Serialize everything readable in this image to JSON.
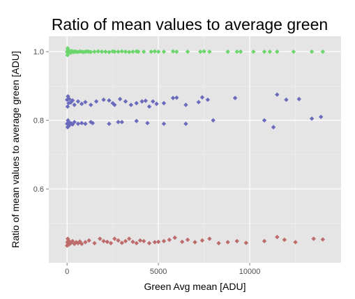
{
  "chart_data": {
    "type": "scatter",
    "title": "Ratio of mean values to average green",
    "xlabel": "Green Avg mean [ADU]",
    "ylabel": "Ratio of mean values to average green [ADU]",
    "xlim": [
      -1000,
      15000
    ],
    "ylim": [
      0.385,
      1.045
    ],
    "x_ticks": [
      0,
      5000,
      10000
    ],
    "x_tick_labels": [
      "0",
      "5000",
      "10000"
    ],
    "y_ticks": [
      0.6,
      0.8,
      1.0
    ],
    "y_tick_labels": [
      "0.6",
      "0.8",
      "1.0"
    ],
    "grid": true,
    "legend": "none",
    "series": [
      {
        "color": "#6bd66b",
        "points": [
          [
            0,
            1.0
          ],
          [
            20,
            0.99
          ],
          [
            30,
            1.01
          ],
          [
            50,
            1.005
          ],
          [
            60,
            0.995
          ],
          [
            80,
            1.0
          ],
          [
            100,
            0.998
          ],
          [
            120,
            1.003
          ],
          [
            150,
            1.0
          ],
          [
            200,
            0.997
          ],
          [
            250,
            1.002
          ],
          [
            300,
            1.0
          ],
          [
            350,
            0.999
          ],
          [
            400,
            1.001
          ],
          [
            450,
            1.0
          ],
          [
            500,
            1.0
          ],
          [
            600,
            0.999
          ],
          [
            700,
            1.001
          ],
          [
            800,
            1.0
          ],
          [
            900,
            0.999
          ],
          [
            1000,
            1.0
          ],
          [
            1100,
            1.001
          ],
          [
            1200,
            1.0
          ],
          [
            1300,
            0.999
          ],
          [
            1500,
            1.0
          ],
          [
            1700,
            1.001
          ],
          [
            1900,
            1.0
          ],
          [
            2100,
            1.0
          ],
          [
            2300,
            0.999
          ],
          [
            2500,
            1.001
          ],
          [
            2600,
            1.0
          ],
          [
            2800,
            1.0
          ],
          [
            3000,
            1.001
          ],
          [
            3200,
            1.0
          ],
          [
            3400,
            0.999
          ],
          [
            3600,
            1.0
          ],
          [
            3800,
            1.001
          ],
          [
            3900,
            1.0
          ],
          [
            4200,
            1.0
          ],
          [
            4600,
            1.0
          ],
          [
            4800,
            1.001
          ],
          [
            5000,
            1.0
          ],
          [
            5300,
            1.0
          ],
          [
            5800,
            1.001
          ],
          [
            6000,
            1.0
          ],
          [
            6600,
            1.0
          ],
          [
            7300,
            1.0
          ],
          [
            7500,
            1.001
          ],
          [
            7800,
            1.0
          ],
          [
            8800,
            1.0
          ],
          [
            9300,
            1.0
          ],
          [
            9500,
            1.0
          ],
          [
            10200,
            1.0
          ],
          [
            10800,
            1.0
          ],
          [
            11100,
            1.0
          ],
          [
            11500,
            1.0
          ],
          [
            12400,
            1.0
          ],
          [
            13400,
            1.0
          ],
          [
            14000,
            1.0
          ]
        ]
      },
      {
        "color": "#6b6bbd",
        "points": [
          [
            0,
            0.86
          ],
          [
            30,
            0.84
          ],
          [
            50,
            0.87
          ],
          [
            80,
            0.85
          ],
          [
            120,
            0.862
          ],
          [
            200,
            0.852
          ],
          [
            300,
            0.858
          ],
          [
            400,
            0.845
          ],
          [
            600,
            0.855
          ],
          [
            800,
            0.848
          ],
          [
            1000,
            0.853
          ],
          [
            1300,
            0.845
          ],
          [
            1600,
            0.855
          ],
          [
            2000,
            0.86
          ],
          [
            2300,
            0.858
          ],
          [
            2500,
            0.85
          ],
          [
            2600,
            0.845
          ],
          [
            2900,
            0.862
          ],
          [
            3200,
            0.855
          ],
          [
            3500,
            0.845
          ],
          [
            3800,
            0.85
          ],
          [
            4100,
            0.855
          ],
          [
            4300,
            0.857
          ],
          [
            4500,
            0.84
          ],
          [
            4700,
            0.855
          ],
          [
            4900,
            0.848
          ],
          [
            5300,
            0.85
          ],
          [
            5800,
            0.865
          ],
          [
            6000,
            0.866
          ],
          [
            6500,
            0.845
          ],
          [
            7200,
            0.853
          ],
          [
            7400,
            0.867
          ],
          [
            7700,
            0.86
          ],
          [
            9200,
            0.865
          ],
          [
            11500,
            0.875
          ],
          [
            12000,
            0.86
          ],
          [
            12700,
            0.862
          ],
          [
            0,
            0.79
          ],
          [
            30,
            0.78
          ],
          [
            50,
            0.8
          ],
          [
            80,
            0.795
          ],
          [
            120,
            0.785
          ],
          [
            200,
            0.792
          ],
          [
            300,
            0.788
          ],
          [
            400,
            0.795
          ],
          [
            600,
            0.79
          ],
          [
            800,
            0.792
          ],
          [
            1000,
            0.79
          ],
          [
            1300,
            0.795
          ],
          [
            1400,
            0.792
          ],
          [
            2300,
            0.79
          ],
          [
            2800,
            0.795
          ],
          [
            3000,
            0.795
          ],
          [
            3800,
            0.798
          ],
          [
            4400,
            0.792
          ],
          [
            5300,
            0.79
          ],
          [
            6500,
            0.79
          ],
          [
            8000,
            0.8
          ],
          [
            10800,
            0.8
          ],
          [
            11300,
            0.78
          ],
          [
            13400,
            0.805
          ],
          [
            13900,
            0.81
          ]
        ]
      },
      {
        "color": "#bd6b6b",
        "points": [
          [
            0,
            0.435
          ],
          [
            20,
            0.445
          ],
          [
            40,
            0.455
          ],
          [
            60,
            0.44
          ],
          [
            80,
            0.45
          ],
          [
            100,
            0.438
          ],
          [
            150,
            0.445
          ],
          [
            200,
            0.442
          ],
          [
            300,
            0.448
          ],
          [
            400,
            0.44
          ],
          [
            500,
            0.445
          ],
          [
            600,
            0.442
          ],
          [
            700,
            0.447
          ],
          [
            800,
            0.44
          ],
          [
            1000,
            0.445
          ],
          [
            1200,
            0.45
          ],
          [
            1500,
            0.442
          ],
          [
            1800,
            0.455
          ],
          [
            2000,
            0.448
          ],
          [
            2200,
            0.446
          ],
          [
            2400,
            0.442
          ],
          [
            2600,
            0.455
          ],
          [
            2800,
            0.45
          ],
          [
            3000,
            0.443
          ],
          [
            3200,
            0.448
          ],
          [
            3400,
            0.455
          ],
          [
            3600,
            0.446
          ],
          [
            3800,
            0.442
          ],
          [
            4000,
            0.45
          ],
          [
            4200,
            0.448
          ],
          [
            4500,
            0.442
          ],
          [
            4800,
            0.445
          ],
          [
            5000,
            0.446
          ],
          [
            5300,
            0.448
          ],
          [
            5600,
            0.452
          ],
          [
            5900,
            0.458
          ],
          [
            6300,
            0.446
          ],
          [
            6600,
            0.452
          ],
          [
            7000,
            0.445
          ],
          [
            7400,
            0.45
          ],
          [
            7800,
            0.455
          ],
          [
            8300,
            0.442
          ],
          [
            8800,
            0.445
          ],
          [
            9300,
            0.448
          ],
          [
            9800,
            0.443
          ],
          [
            10800,
            0.448
          ],
          [
            11500,
            0.46
          ],
          [
            11900,
            0.452
          ],
          [
            12500,
            0.445
          ],
          [
            13500,
            0.455
          ],
          [
            14000,
            0.453
          ]
        ]
      }
    ]
  }
}
